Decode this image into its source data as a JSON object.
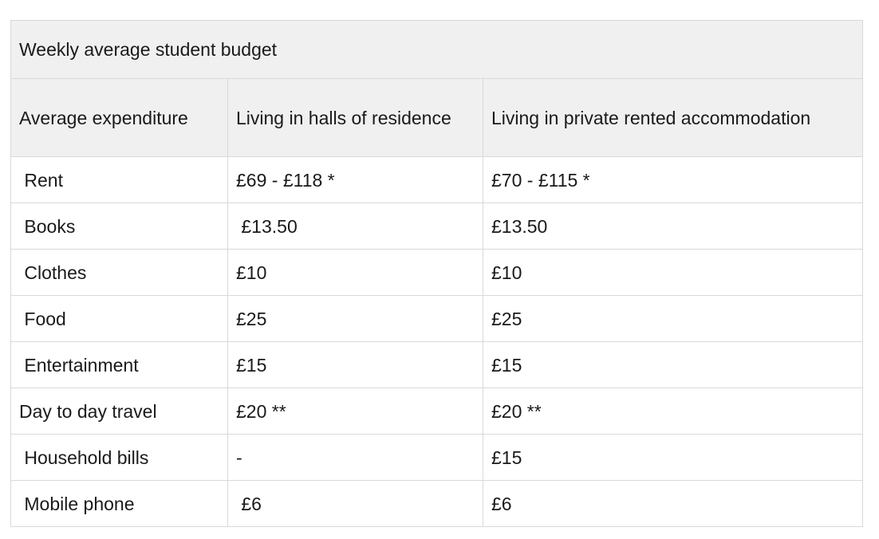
{
  "caption": "Weekly average student budget",
  "columns": [
    "Average expenditure",
    "Living in halls of residence",
    "Living in private rented accommodation"
  ],
  "rows": [
    {
      "label": " Rent",
      "halls": "£69 - £118 *",
      "private": "£70 - £115 *"
    },
    {
      "label": " Books",
      "halls": " £13.50",
      "private": "£13.50"
    },
    {
      "label": " Clothes",
      "halls": "£10",
      "private": "£10"
    },
    {
      "label": " Food",
      "halls": "£25",
      "private": "£25"
    },
    {
      "label": " Entertainment",
      "halls": "£15",
      "private": "£15"
    },
    {
      "label": "Day to day travel",
      "halls": "£20 **",
      "private": "£20 **"
    },
    {
      "label": " Household bills",
      "halls": "-",
      "private": "£15"
    },
    {
      "label": " Mobile phone",
      "halls": " £6",
      "private": "£6"
    }
  ]
}
